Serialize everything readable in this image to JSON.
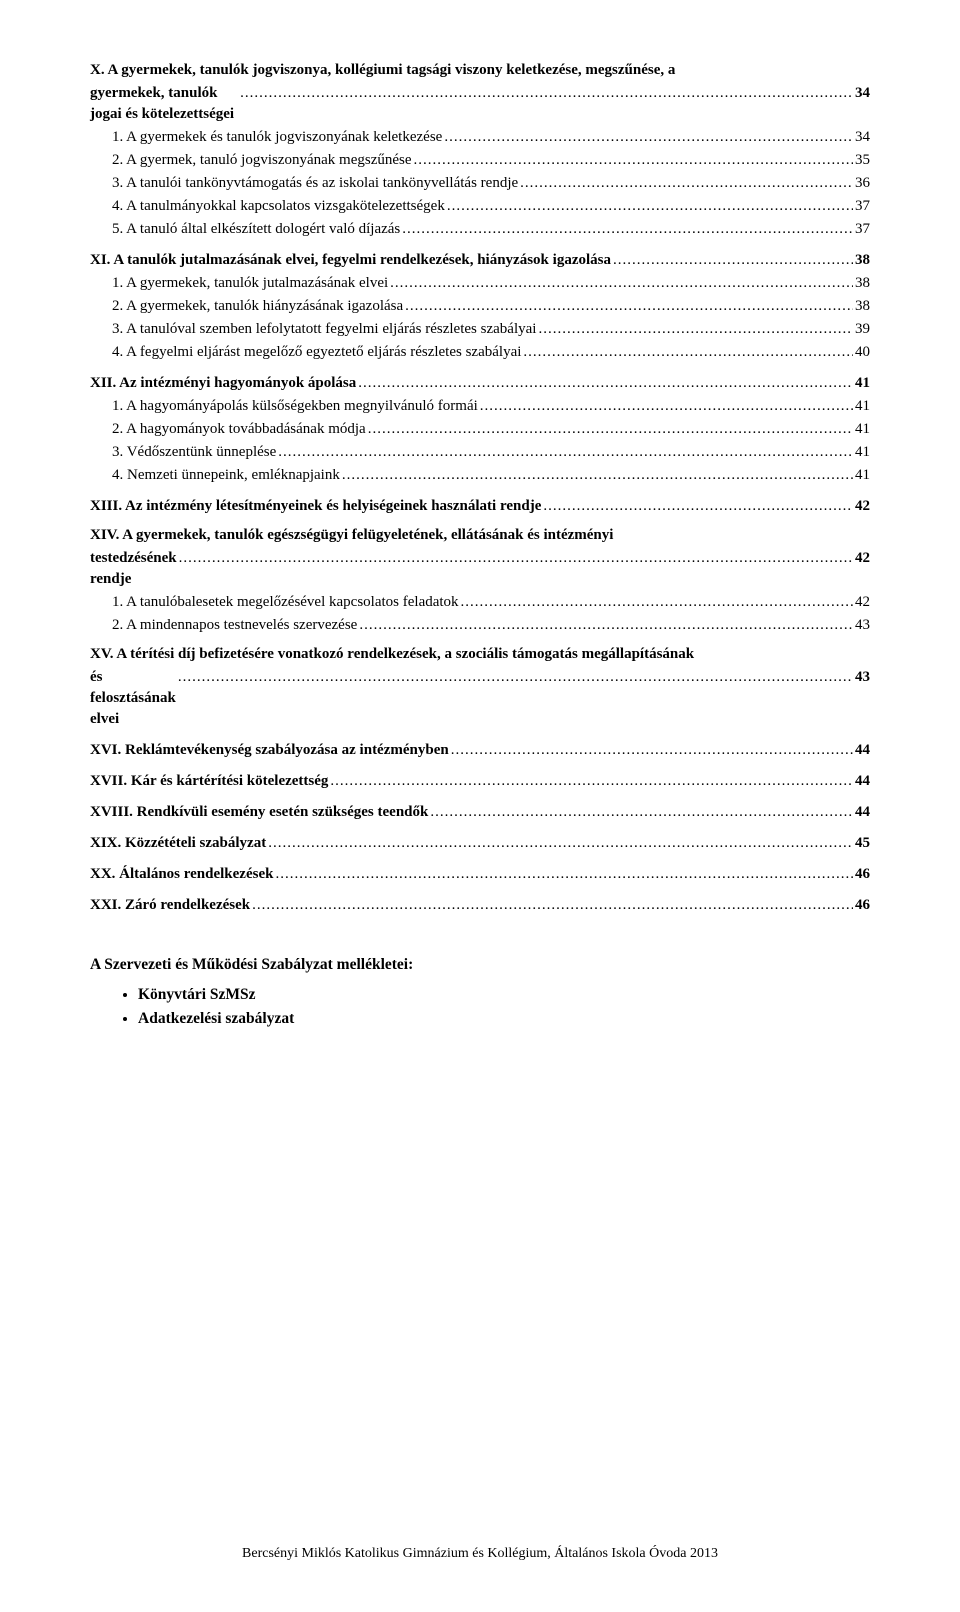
{
  "toc": [
    {
      "type": "multiline",
      "bold": true,
      "line1": "X. A gyermekek, tanulók jogviszonya, kollégiumi tagsági viszony keletkezése, megszűnése, a",
      "line2": "gyermekek, tanulók jogai és kötelezettségei",
      "page": "34"
    },
    {
      "type": "sub",
      "label": "1. A gyermekek és tanulók jogviszonyának keletkezése",
      "page": "34"
    },
    {
      "type": "sub",
      "label": "2. A gyermek, tanuló jogviszonyának megszűnése",
      "page": "35"
    },
    {
      "type": "sub",
      "label": "3. A tanulói tankönyvtámogatás és az iskolai tankönyvellátás rendje",
      "page": "36"
    },
    {
      "type": "sub",
      "label": "4. A tanulmányokkal kapcsolatos vizsgakötelezettségek",
      "page": "37"
    },
    {
      "type": "sub",
      "label": "5. A tanuló által elkészített dologért való díjazás",
      "page": "37"
    },
    {
      "type": "bold",
      "label": "XI. A tanulók jutalmazásának elvei, fegyelmi rendelkezések, hiányzások igazolása",
      "page": "38"
    },
    {
      "type": "sub",
      "label": "1. A gyermekek, tanulók jutalmazásának elvei",
      "page": "38"
    },
    {
      "type": "sub",
      "label": "2. A gyermekek, tanulók hiányzásának igazolása",
      "page": "38"
    },
    {
      "type": "sub",
      "label": "3. A tanulóval szemben lefolytatott fegyelmi eljárás részletes szabályai",
      "page": "39"
    },
    {
      "type": "sub",
      "label": "4. A fegyelmi eljárást megelőző egyeztető eljárás részletes szabályai",
      "page": "40"
    },
    {
      "type": "bold",
      "label": "XII. Az intézményi hagyományok ápolása",
      "page": "41"
    },
    {
      "type": "sub",
      "label": "1. A hagyományápolás külsőségekben megnyilvánuló formái",
      "page": "41"
    },
    {
      "type": "sub",
      "label": "2. A hagyományok továbbadásának módja",
      "page": "41"
    },
    {
      "type": "sub",
      "label": "3. Védőszentünk ünneplése",
      "page": "41"
    },
    {
      "type": "sub",
      "label": "4. Nemzeti ünnepeink, emléknapjaink",
      "page": "41"
    },
    {
      "type": "bold",
      "label": "XIII. Az intézmény létesítményeinek és helyiségeinek használati rendje",
      "page": "42"
    },
    {
      "type": "multiline",
      "bold": true,
      "line1": "XIV. A gyermekek, tanulók egészségügyi felügyeletének, ellátásának és intézményi",
      "line2": "testedzésének rendje",
      "page": "42"
    },
    {
      "type": "sub",
      "label": "1. A tanulóbalesetek megelőzésével kapcsolatos feladatok",
      "page": "42"
    },
    {
      "type": "sub",
      "label": "2. A mindennapos testnevelés szervezése",
      "page": "43"
    },
    {
      "type": "multiline",
      "bold": true,
      "line1": "XV. A térítési díj befizetésére vonatkozó rendelkezések, a szociális támogatás megállapításának",
      "line2": "és felosztásának elvei",
      "page": "43"
    },
    {
      "type": "bold",
      "label": "XVI. Reklámtevékenység szabályozása az intézményben",
      "page": "44"
    },
    {
      "type": "bold",
      "label": "XVII. Kár és kártérítési kötelezettség",
      "page": "44"
    },
    {
      "type": "bold",
      "label": "XVIII. Rendkívüli esemény esetén szükséges teendők",
      "page": "44"
    },
    {
      "type": "bold",
      "label": "XIX. Közzétételi szabályzat",
      "page": "45"
    },
    {
      "type": "bold",
      "label": "XX. Általános rendelkezések",
      "page": "46"
    },
    {
      "type": "bold",
      "label": "XXI. Záró rendelkezések",
      "page": "46"
    }
  ],
  "appendix": {
    "title": "A Szervezeti és Működési Szabályzat mellékletei:",
    "items": [
      "Könyvtári SzMSz",
      "Adatkezelési szabályzat"
    ]
  },
  "footer": "Bercsényi Miklós Katolikus Gimnázium és  Kollégium, Általános Iskola Óvoda 2013",
  "dots": "..............................................................................................................................................................................................................................................."
}
